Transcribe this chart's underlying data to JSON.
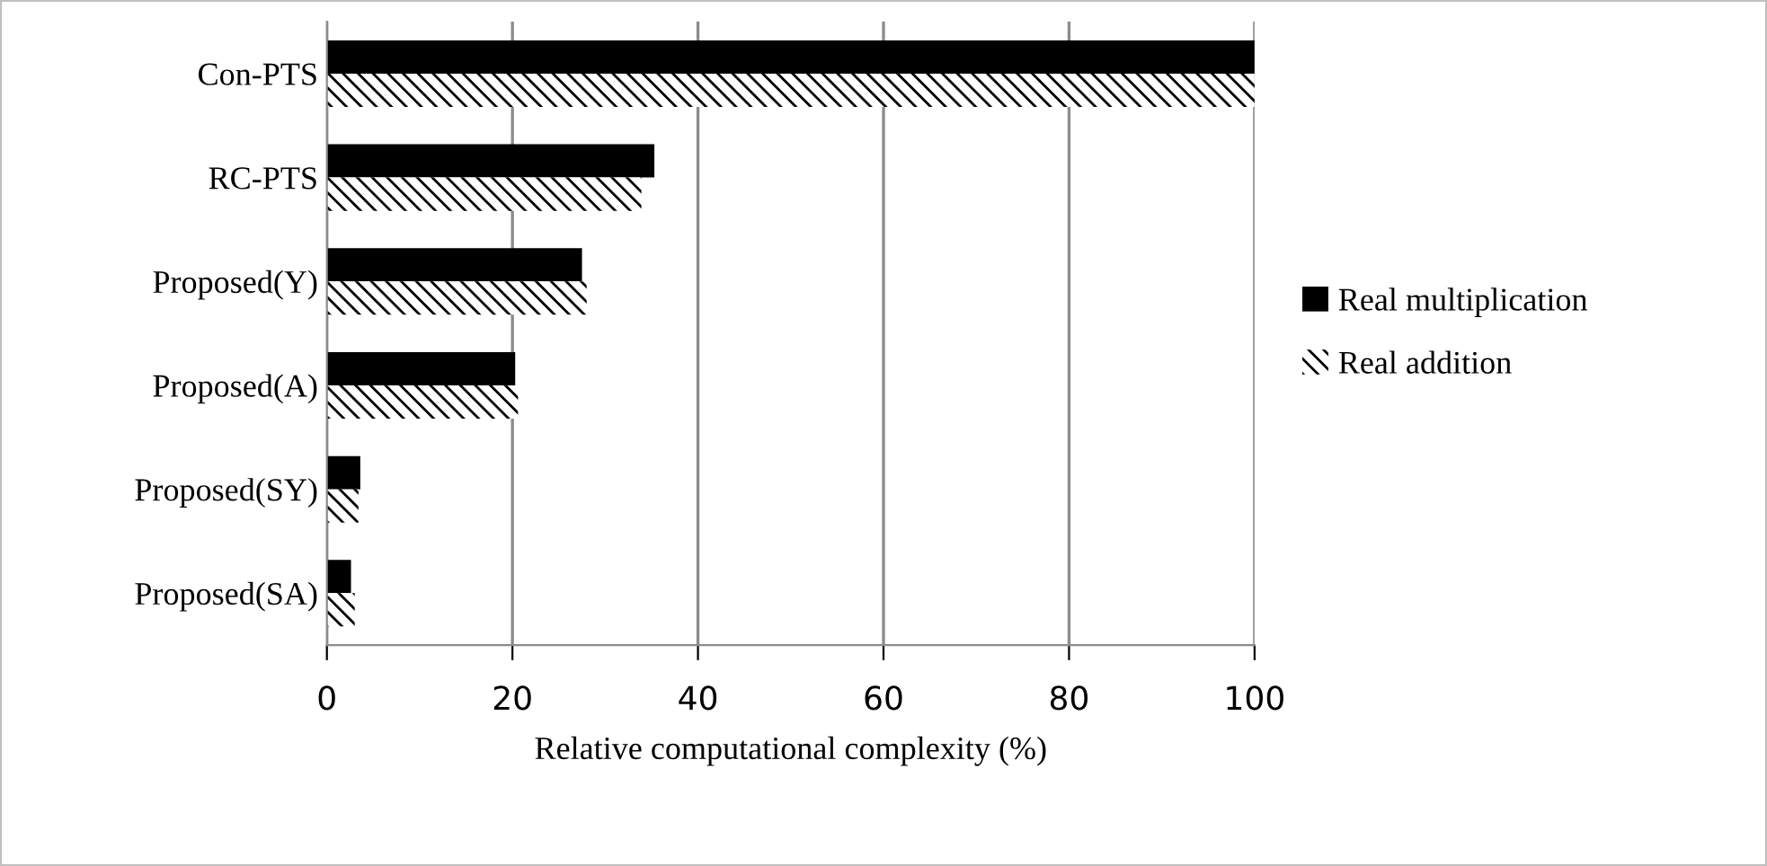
{
  "chart_data": {
    "type": "bar",
    "orientation": "horizontal",
    "xlabel": "Relative computational complexity (%)",
    "categories": [
      "Con-PTS",
      "RC-PTS",
      "Proposed(Y)",
      "Proposed(A)",
      "Proposed(SY)",
      "Proposed(SA)"
    ],
    "series": [
      {
        "name": "Real multiplication",
        "color": "#000000",
        "values": [
          100,
          35.3,
          27.5,
          20.3,
          3.6,
          2.6
        ]
      },
      {
        "name": "Real addition",
        "color": "#ffffff",
        "values": [
          100,
          33.9,
          28.0,
          20.6,
          3.4,
          3.0
        ]
      }
    ],
    "xlim": [
      0,
      100
    ],
    "xticks": [
      0,
      20,
      40,
      60,
      80,
      100
    ],
    "grid": "x",
    "legend": "right"
  }
}
